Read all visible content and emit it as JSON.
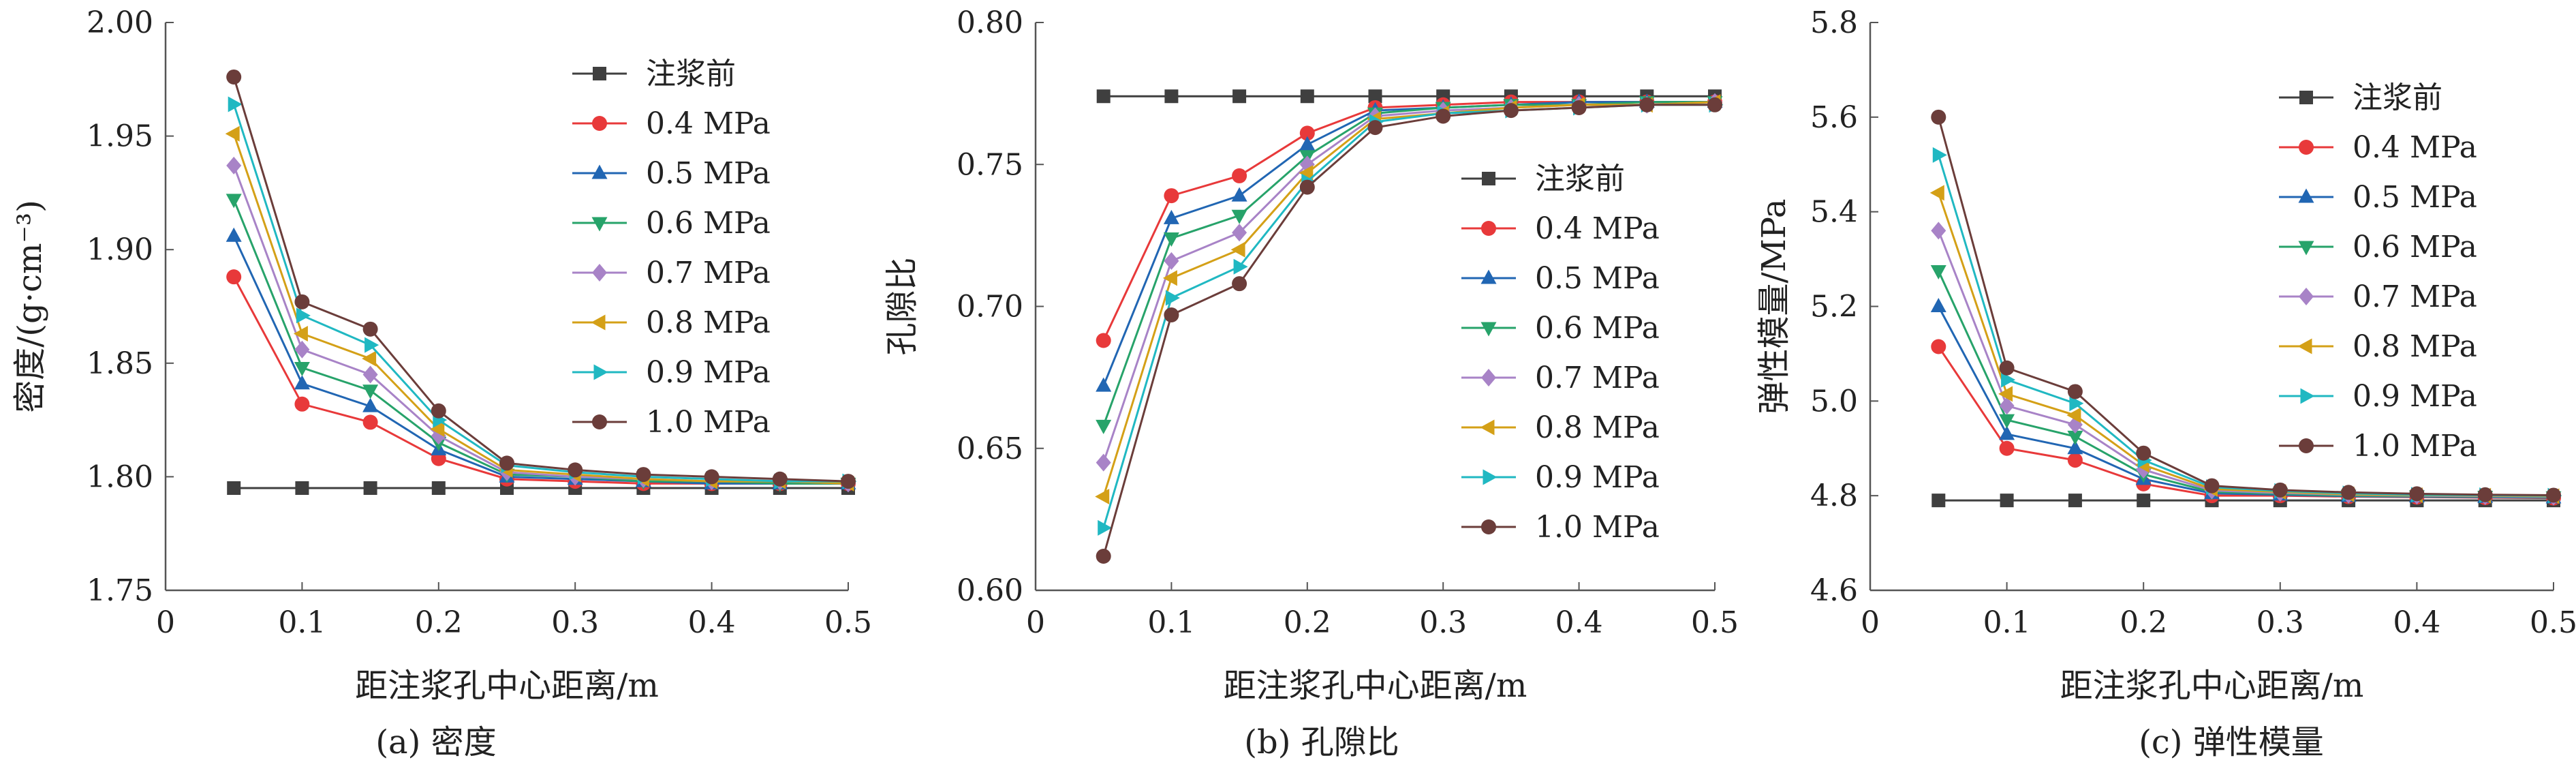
{
  "figure": {
    "panels": [
      {
        "caption": "(a) 密度"
      },
      {
        "caption": "(b) 孔隙比"
      },
      {
        "caption": "(c) 弹性模量"
      }
    ]
  },
  "series_styles": [
    {
      "name": "注浆前",
      "color": "#3f3f3f",
      "marker": "square"
    },
    {
      "name": "0.4 MPa",
      "color": "#e8393a",
      "marker": "circle"
    },
    {
      "name": "0.5 MPa",
      "color": "#2166b3",
      "marker": "triangle-up"
    },
    {
      "name": "0.6 MPa",
      "color": "#27a36a",
      "marker": "triangle-down"
    },
    {
      "name": "0.7 MPa",
      "color": "#a883c7",
      "marker": "diamond"
    },
    {
      "name": "0.8 MPa",
      "color": "#d4a017",
      "marker": "triangle-left"
    },
    {
      "name": "0.9 MPa",
      "color": "#20b8c2",
      "marker": "triangle-right"
    },
    {
      "name": "1.0 MPa",
      "color": "#6b3d3a",
      "marker": "hexagon"
    }
  ],
  "chart_data": [
    {
      "type": "line",
      "title": "(a) 密度",
      "xlabel": "距注浆孔中心距离/m",
      "ylabel": "密度/(g·cm⁻³)",
      "xlim": [
        0,
        0.5
      ],
      "ylim": [
        1.75,
        2.0
      ],
      "xticks": [
        0,
        0.1,
        0.2,
        0.3,
        0.4,
        0.5
      ],
      "xtick_labels": [
        "0",
        "0.1",
        "0.2",
        "0.3",
        "0.4",
        "0.5"
      ],
      "yticks": [
        1.75,
        1.8,
        1.85,
        1.9,
        1.95,
        2.0
      ],
      "ytick_labels": [
        "1.75",
        "1.80",
        "1.85",
        "1.90",
        "1.95",
        "2.00"
      ],
      "legend_position": "top-right",
      "grid": false,
      "x": [
        0.05,
        0.1,
        0.15,
        0.2,
        0.25,
        0.3,
        0.35,
        0.4,
        0.45,
        0.5
      ],
      "series": [
        {
          "name": "注浆前",
          "values": [
            1.795,
            1.795,
            1.795,
            1.795,
            1.795,
            1.795,
            1.795,
            1.795,
            1.795,
            1.795
          ]
        },
        {
          "name": "0.4 MPa",
          "values": [
            1.888,
            1.832,
            1.824,
            1.808,
            1.799,
            1.798,
            1.797,
            1.797,
            1.797,
            1.797
          ]
        },
        {
          "name": "0.5 MPa",
          "values": [
            1.906,
            1.841,
            1.831,
            1.812,
            1.8,
            1.799,
            1.798,
            1.797,
            1.797,
            1.797
          ]
        },
        {
          "name": "0.6 MPa",
          "values": [
            1.922,
            1.848,
            1.838,
            1.815,
            1.801,
            1.8,
            1.798,
            1.798,
            1.797,
            1.797
          ]
        },
        {
          "name": "0.7 MPa",
          "values": [
            1.937,
            1.856,
            1.845,
            1.818,
            1.802,
            1.8,
            1.799,
            1.798,
            1.798,
            1.797
          ]
        },
        {
          "name": "0.8 MPa",
          "values": [
            1.951,
            1.863,
            1.852,
            1.821,
            1.803,
            1.801,
            1.799,
            1.798,
            1.798,
            1.797
          ]
        },
        {
          "name": "0.9 MPa",
          "values": [
            1.964,
            1.871,
            1.858,
            1.825,
            1.805,
            1.802,
            1.8,
            1.799,
            1.798,
            1.798
          ]
        },
        {
          "name": "1.0 MPa",
          "values": [
            1.976,
            1.877,
            1.865,
            1.829,
            1.806,
            1.803,
            1.801,
            1.8,
            1.799,
            1.798
          ]
        }
      ]
    },
    {
      "type": "line",
      "title": "(b) 孔隙比",
      "xlabel": "距注浆孔中心距离/m",
      "ylabel": "孔隙比",
      "xlim": [
        0,
        0.5
      ],
      "ylim": [
        0.6,
        0.8
      ],
      "xticks": [
        0,
        0.1,
        0.2,
        0.3,
        0.4,
        0.5
      ],
      "xtick_labels": [
        "0",
        "0.1",
        "0.2",
        "0.3",
        "0.4",
        "0.5"
      ],
      "yticks": [
        0.6,
        0.65,
        0.7,
        0.75,
        0.8
      ],
      "ytick_labels": [
        "0.60",
        "0.65",
        "0.70",
        "0.75",
        "0.80"
      ],
      "legend_position": "right",
      "grid": false,
      "x": [
        0.05,
        0.1,
        0.15,
        0.2,
        0.25,
        0.3,
        0.35,
        0.4,
        0.45,
        0.5
      ],
      "series": [
        {
          "name": "注浆前",
          "values": [
            0.774,
            0.774,
            0.774,
            0.774,
            0.774,
            0.774,
            0.774,
            0.774,
            0.774,
            0.774
          ]
        },
        {
          "name": "0.4 MPa",
          "values": [
            0.688,
            0.739,
            0.746,
            0.761,
            0.77,
            0.771,
            0.772,
            0.772,
            0.772,
            0.772
          ]
        },
        {
          "name": "0.5 MPa",
          "values": [
            0.672,
            0.731,
            0.739,
            0.757,
            0.769,
            0.77,
            0.771,
            0.772,
            0.772,
            0.772
          ]
        },
        {
          "name": "0.6 MPa",
          "values": [
            0.658,
            0.724,
            0.732,
            0.753,
            0.768,
            0.77,
            0.771,
            0.771,
            0.772,
            0.772
          ]
        },
        {
          "name": "0.7 MPa",
          "values": [
            0.645,
            0.716,
            0.726,
            0.75,
            0.767,
            0.769,
            0.77,
            0.771,
            0.771,
            0.772
          ]
        },
        {
          "name": "0.8 MPa",
          "values": [
            0.633,
            0.71,
            0.72,
            0.747,
            0.766,
            0.768,
            0.77,
            0.771,
            0.771,
            0.772
          ]
        },
        {
          "name": "0.9 MPa",
          "values": [
            0.622,
            0.703,
            0.714,
            0.744,
            0.765,
            0.768,
            0.769,
            0.77,
            0.771,
            0.771
          ]
        },
        {
          "name": "1.0 MPa",
          "values": [
            0.612,
            0.697,
            0.708,
            0.742,
            0.763,
            0.767,
            0.769,
            0.77,
            0.771,
            0.771
          ]
        }
      ]
    },
    {
      "type": "line",
      "title": "(c) 弹性模量",
      "xlabel": "距注浆孔中心距离/m",
      "ylabel": "弹性模量/MPa",
      "xlim": [
        0,
        0.5
      ],
      "ylim": [
        4.6,
        5.8
      ],
      "xticks": [
        0,
        0.1,
        0.2,
        0.3,
        0.4,
        0.5
      ],
      "xtick_labels": [
        "0",
        "0.1",
        "0.2",
        "0.3",
        "0.4",
        "0.5"
      ],
      "yticks": [
        4.6,
        4.8,
        5.0,
        5.2,
        5.4,
        5.6,
        5.8
      ],
      "ytick_labels": [
        "4.6",
        "4.8",
        "5.0",
        "5.2",
        "5.4",
        "5.6",
        "5.8"
      ],
      "legend_position": "top-right",
      "grid": false,
      "x": [
        0.05,
        0.1,
        0.15,
        0.2,
        0.25,
        0.3,
        0.35,
        0.4,
        0.45,
        0.5
      ],
      "series": [
        {
          "name": "注浆前",
          "values": [
            4.79,
            4.79,
            4.79,
            4.79,
            4.79,
            4.79,
            4.79,
            4.79,
            4.79,
            4.79
          ]
        },
        {
          "name": "0.4 MPa",
          "values": [
            5.115,
            4.9,
            4.875,
            4.825,
            4.8,
            4.8,
            4.798,
            4.797,
            4.796,
            4.795
          ]
        },
        {
          "name": "0.5 MPa",
          "values": [
            5.2,
            4.93,
            4.9,
            4.835,
            4.805,
            4.802,
            4.799,
            4.798,
            4.797,
            4.796
          ]
        },
        {
          "name": "0.6 MPa",
          "values": [
            5.275,
            4.96,
            4.925,
            4.845,
            4.808,
            4.804,
            4.8,
            4.799,
            4.798,
            4.797
          ]
        },
        {
          "name": "0.7 MPa",
          "values": [
            5.36,
            4.99,
            4.95,
            4.855,
            4.811,
            4.806,
            4.802,
            4.8,
            4.799,
            4.798
          ]
        },
        {
          "name": "0.8 MPa",
          "values": [
            5.44,
            5.015,
            4.97,
            4.865,
            4.814,
            4.808,
            4.803,
            4.801,
            4.8,
            4.799
          ]
        },
        {
          "name": "0.9 MPa",
          "values": [
            5.52,
            5.045,
            4.995,
            4.875,
            4.818,
            4.81,
            4.805,
            4.802,
            4.801,
            4.8
          ]
        },
        {
          "name": "1.0 MPa",
          "values": [
            5.6,
            5.07,
            5.02,
            4.89,
            4.821,
            4.812,
            4.807,
            4.804,
            4.802,
            4.801
          ]
        }
      ]
    }
  ]
}
